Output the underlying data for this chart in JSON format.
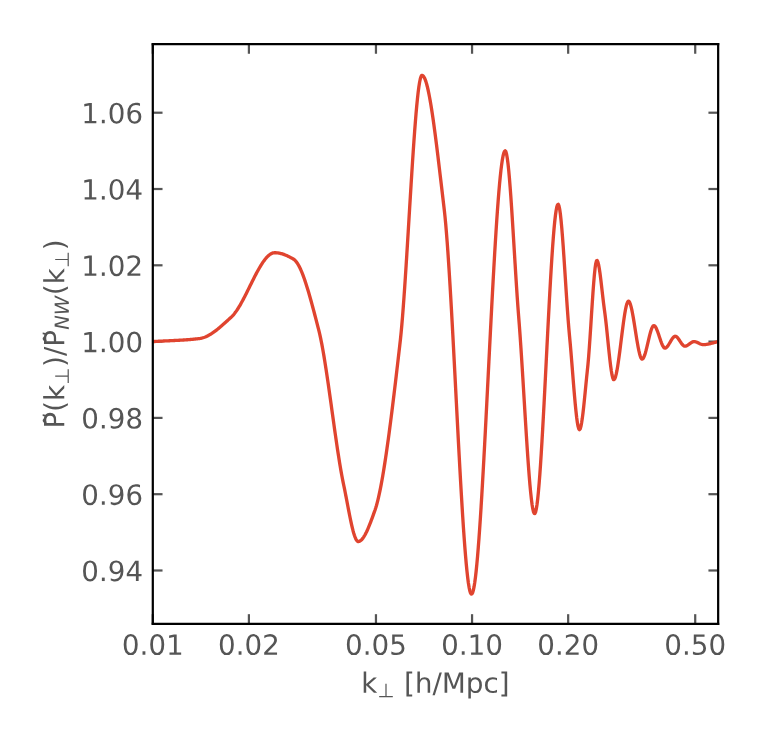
{
  "chart_data": {
    "type": "line",
    "xlabel": "k$_{⊥}$ [h/Mpc]",
    "ylabel": "P̃(k$_{⊥}$)/P̃$_{NW}$(k$_{⊥}$)",
    "x": [
      0.01,
      0.014,
      0.0176,
      0.0241,
      0.0276,
      0.0331,
      0.0396,
      0.044,
      0.0496,
      0.0595,
      0.0697,
      0.0817,
      0.0996,
      0.127,
      0.14,
      0.157,
      0.186,
      0.202,
      0.217,
      0.23,
      0.246,
      0.26,
      0.278,
      0.309,
      0.341,
      0.371,
      0.402,
      0.433,
      0.464,
      0.496,
      0.53,
      0.59
    ],
    "series": [
      {
        "color": "#e0442f",
        "values": [
          1.0,
          1.0008,
          1.0064,
          1.0233,
          1.0216,
          1.003,
          0.9625,
          0.9476,
          0.9557,
          0.9997,
          1.0698,
          1.0351,
          0.9338,
          1.05,
          1.0064,
          0.9549,
          1.036,
          1.0014,
          0.9769,
          0.9929,
          1.0213,
          1.0081,
          0.99,
          1.0106,
          0.9954,
          1.0042,
          0.9983,
          1.0014,
          0.9988,
          1.0,
          0.9992,
          1.0
        ]
      }
    ],
    "xlim": [
      0.01,
      0.59
    ],
    "ylim": [
      0.926,
      1.078
    ],
    "log": "x",
    "xticks": [
      0.01,
      0.02,
      0.05,
      {
        "value": 0.1,
        "label": "0.10"
      },
      {
        "value": 0.2,
        "label": "0.20"
      },
      {
        "value": 0.5,
        "label": "0.50"
      }
    ],
    "yticks": [
      {
        "value": 0.94,
        "label": "0.94"
      },
      {
        "value": 0.96,
        "label": "0.96"
      },
      {
        "value": 0.98,
        "label": "0.98"
      },
      {
        "value": 1.0,
        "label": "1.00"
      },
      {
        "value": 1.02,
        "label": "1.02"
      },
      {
        "value": 1.04,
        "label": "1.04"
      },
      {
        "value": 1.06,
        "label": "1.06"
      }
    ],
    "grid": false,
    "legend": false
  }
}
